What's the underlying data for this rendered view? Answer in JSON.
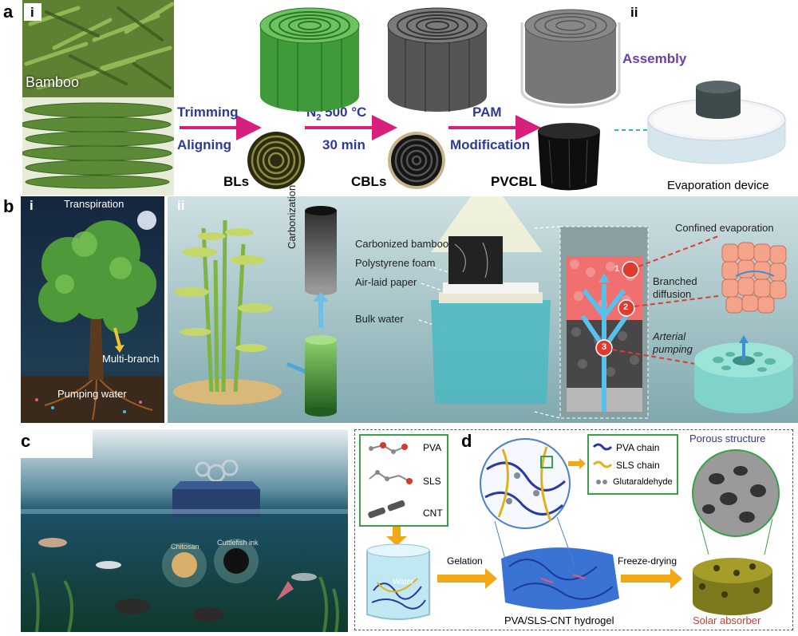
{
  "panel_a": {
    "letter": "a",
    "sub_i": "i",
    "sub_ii": "ii",
    "bamboo_label": "Bamboo",
    "step1_top": "Trimming",
    "step1_bottom": "Aligning",
    "step2_top_n": "N",
    "step2_top_sub": "2",
    "step2_top_rest": "500 °C",
    "step2_bottom": "30 min",
    "step3_top": "PAM",
    "step3_bottom": "Modification",
    "bls": "BLs",
    "cbls": "CBLs",
    "pvcbl": "PVCBL",
    "assembly": "Assembly",
    "evaporation_device": "Evaporation device",
    "colors": {
      "arrow": "#d6207c",
      "blue_text": "#2e3a9b",
      "purple_text": "#6b3fa6",
      "green_roll": "#3f9a3a",
      "gray_roll": "#555555"
    }
  },
  "panel_b": {
    "letter": "b",
    "sub_i": "i",
    "sub_ii": "ii",
    "transpiration": "Transpiration",
    "multi_branch": "Multi-branch",
    "pumping_water": "Pumping water",
    "carbonization": "Carbonization",
    "carbonized_bamboo": "Carbonized bamboo",
    "polystyrene_foam": "Polystyrene foam",
    "air_laid_paper": "Air-laid paper",
    "bulk_water": "Bulk water",
    "confined_evaporation": "Confined evaporation",
    "branched_diffusion": "Branched\ndiffusion",
    "branched_line1": "Branched",
    "branched_line2": "diffusion",
    "arterial_line1": "Arterial",
    "arterial_line2": "pumping",
    "markers": [
      "1",
      "2",
      "3"
    ]
  },
  "panel_c": {
    "letter": "c",
    "chitosan": "Chitosan",
    "cuttlefish_ink": "Cuttlefish ink"
  },
  "panel_d": {
    "letter": "d",
    "pva": "PVA",
    "sls": "SLS",
    "cnt": "CNT",
    "pva_chain": "PVA chain",
    "sls_chain": "SLS chain",
    "glutaraldehyde": "Glutaraldehyde",
    "porous_structure": "Porous structure",
    "water": "Water",
    "gelation": "Gelation",
    "freeze_drying": "Freeze-drying",
    "hydrogel": "PVA/SLS-CNT hydrogel",
    "solar_absorber": "Solar absorber"
  }
}
